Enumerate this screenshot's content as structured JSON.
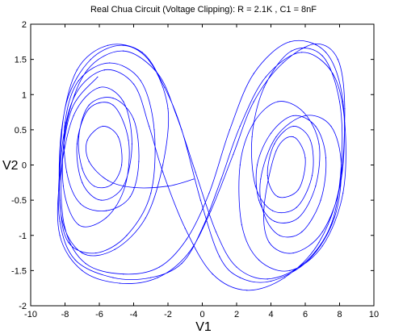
{
  "chart_data": {
    "type": "line",
    "title": "Real Chua Circuit (Voltage Clipping): R = 2.1K , C1 = 8nF",
    "xlabel": "V1",
    "ylabel": "V2",
    "xlim": [
      -10,
      10
    ],
    "ylim": [
      -2,
      2
    ],
    "xticks": [
      -10,
      -8,
      -6,
      -4,
      -2,
      0,
      2,
      4,
      6,
      8,
      10
    ],
    "yticks": [
      -2,
      -1.5,
      -1,
      -0.5,
      0,
      0.5,
      1,
      1.5,
      2
    ],
    "grid": false,
    "line_color": "#0000ff",
    "series": [
      {
        "values": [
          [
            -0.5,
            -0.2
          ],
          [
            -2.0,
            -0.3
          ],
          [
            -4.0,
            -0.32
          ],
          [
            -5.5,
            -0.22
          ],
          [
            -6.6,
            0.05
          ],
          [
            -6.7,
            0.35
          ],
          [
            -5.8,
            0.55
          ],
          [
            -4.9,
            0.4
          ],
          [
            -4.7,
            0.0
          ],
          [
            -5.3,
            -0.28
          ],
          [
            -6.3,
            -0.3
          ],
          [
            -7.0,
            -0.05
          ],
          [
            -7.2,
            0.4
          ],
          [
            -6.6,
            0.85
          ],
          [
            -5.2,
            0.95
          ],
          [
            -4.0,
            0.65
          ],
          [
            -3.7,
            0.05
          ],
          [
            -4.2,
            -0.45
          ],
          [
            -5.6,
            -0.65
          ],
          [
            -7.1,
            -0.55
          ],
          [
            -7.9,
            -0.1
          ],
          [
            -8.0,
            0.6
          ],
          [
            -7.2,
            1.2
          ],
          [
            -5.4,
            1.45
          ],
          [
            -3.6,
            1.2
          ],
          [
            -2.8,
            0.5
          ],
          [
            -3.0,
            -0.4
          ],
          [
            -4.4,
            -1.0
          ],
          [
            -6.2,
            -1.25
          ],
          [
            -7.8,
            -1.1
          ],
          [
            -8.3,
            -0.5
          ],
          [
            -8.2,
            0.5
          ],
          [
            -7.3,
            1.35
          ],
          [
            -5.5,
            1.7
          ],
          [
            -3.5,
            1.6
          ],
          [
            -2.2,
            1.1
          ],
          [
            -1.2,
            0.5
          ],
          [
            -0.1,
            -0.5
          ],
          [
            1.0,
            -1.3
          ],
          [
            2.2,
            -1.6
          ],
          [
            4.0,
            -1.65
          ],
          [
            6.2,
            -1.35
          ],
          [
            7.7,
            -0.75
          ],
          [
            8.1,
            0.0
          ],
          [
            7.5,
            0.55
          ],
          [
            6.0,
            0.7
          ],
          [
            4.3,
            0.4
          ],
          [
            3.4,
            -0.2
          ],
          [
            3.6,
            -0.7
          ],
          [
            4.5,
            -1.0
          ],
          [
            5.8,
            -0.95
          ],
          [
            6.9,
            -0.5
          ],
          [
            7.2,
            0.1
          ],
          [
            6.6,
            0.55
          ],
          [
            5.3,
            0.7
          ],
          [
            4.0,
            0.45
          ],
          [
            3.2,
            0.0
          ],
          [
            3.3,
            -0.5
          ],
          [
            4.2,
            -0.8
          ],
          [
            5.6,
            -0.75
          ],
          [
            6.6,
            -0.3
          ],
          [
            6.8,
            0.3
          ],
          [
            5.9,
            0.75
          ],
          [
            4.4,
            0.9
          ],
          [
            3.0,
            0.6
          ],
          [
            2.2,
            0.0
          ],
          [
            2.3,
            -0.85
          ],
          [
            3.3,
            -1.35
          ],
          [
            5.1,
            -1.5
          ],
          [
            7.0,
            -1.15
          ],
          [
            8.2,
            -0.4
          ],
          [
            8.3,
            0.6
          ],
          [
            7.6,
            1.3
          ],
          [
            5.8,
            1.6
          ],
          [
            3.7,
            1.25
          ],
          [
            2.2,
            0.55
          ],
          [
            1.1,
            -0.2
          ],
          [
            0.0,
            -0.9
          ],
          [
            -1.2,
            -1.4
          ],
          [
            -3.0,
            -1.6
          ],
          [
            -5.2,
            -1.6
          ],
          [
            -7.4,
            -1.35
          ],
          [
            -8.3,
            -0.8
          ],
          [
            -8.3,
            0.0
          ],
          [
            -7.9,
            0.9
          ],
          [
            -6.5,
            1.5
          ],
          [
            -4.6,
            1.7
          ],
          [
            -3.0,
            1.45
          ],
          [
            -2.0,
            0.8
          ],
          [
            -2.3,
            0.0
          ],
          [
            -3.3,
            -0.75
          ],
          [
            -5.1,
            -1.2
          ],
          [
            -7.0,
            -1.25
          ],
          [
            -8.2,
            -0.75
          ],
          [
            -8.2,
            0.2
          ],
          [
            -7.4,
            1.0
          ],
          [
            -5.7,
            1.35
          ],
          [
            -4.0,
            1.15
          ],
          [
            -3.1,
            0.55
          ],
          [
            -2.3,
            -0.1
          ],
          [
            -1.0,
            -0.9
          ],
          [
            0.6,
            -1.55
          ],
          [
            2.6,
            -1.78
          ],
          [
            4.8,
            -1.6
          ],
          [
            6.8,
            -1.1
          ],
          [
            8.0,
            -0.3
          ],
          [
            8.3,
            0.8
          ],
          [
            7.9,
            1.5
          ],
          [
            6.6,
            1.72
          ],
          [
            4.7,
            1.45
          ],
          [
            3.0,
            0.9
          ],
          [
            1.8,
            0.15
          ],
          [
            0.5,
            -0.65
          ],
          [
            -0.8,
            -1.25
          ],
          [
            -2.6,
            -1.6
          ],
          [
            -4.8,
            -1.68
          ],
          [
            -7.0,
            -1.5
          ],
          [
            -8.3,
            -1.0
          ],
          [
            -8.3,
            -0.2
          ],
          [
            -7.5,
            0.7
          ],
          [
            -6.0,
            1.1
          ],
          [
            -4.6,
            0.9
          ],
          [
            -4.1,
            0.3
          ],
          [
            -4.6,
            -0.3
          ],
          [
            -5.9,
            -0.5
          ],
          [
            -7.0,
            -0.25
          ],
          [
            -7.3,
            0.3
          ],
          [
            -6.6,
            0.8
          ],
          [
            -5.2,
            0.85
          ],
          [
            -4.3,
            0.35
          ],
          [
            -4.5,
            -0.3
          ],
          [
            -5.6,
            -0.75
          ],
          [
            -7.2,
            -0.85
          ],
          [
            -8.1,
            -0.3
          ],
          [
            -7.9,
            0.6
          ],
          [
            -6.7,
            1.35
          ],
          [
            -4.6,
            1.62
          ],
          [
            -2.6,
            1.3
          ],
          [
            -1.5,
            0.7
          ],
          [
            -0.4,
            -0.1
          ],
          [
            0.8,
            -0.95
          ],
          [
            2.0,
            -1.45
          ],
          [
            3.8,
            -1.62
          ],
          [
            5.9,
            -1.4
          ],
          [
            7.5,
            -0.85
          ],
          [
            8.1,
            0.0
          ],
          [
            8.0,
            0.9
          ],
          [
            7.0,
            1.55
          ],
          [
            5.2,
            1.62
          ],
          [
            3.6,
            1.1
          ],
          [
            2.9,
            0.4
          ],
          [
            3.1,
            -0.3
          ],
          [
            4.1,
            -0.65
          ],
          [
            5.5,
            -0.6
          ],
          [
            6.4,
            -0.15
          ],
          [
            6.3,
            0.35
          ],
          [
            5.3,
            0.55
          ],
          [
            4.2,
            0.3
          ],
          [
            3.8,
            -0.15
          ],
          [
            4.4,
            -0.45
          ],
          [
            5.6,
            -0.35
          ],
          [
            6.0,
            0.1
          ],
          [
            5.3,
            0.4
          ],
          [
            4.3,
            0.2
          ],
          [
            3.6,
            -0.6
          ],
          [
            3.9,
            -1.1
          ],
          [
            5.3,
            -1.25
          ],
          [
            7.0,
            -0.95
          ],
          [
            8.1,
            -0.2
          ],
          [
            8.2,
            0.9
          ],
          [
            7.2,
            1.6
          ],
          [
            5.1,
            1.75
          ],
          [
            3.0,
            1.3
          ],
          [
            1.6,
            0.5
          ],
          [
            0.4,
            -0.4
          ],
          [
            -0.9,
            -1.05
          ],
          [
            -2.5,
            -1.45
          ],
          [
            -4.6,
            -1.55
          ],
          [
            -6.8,
            -1.4
          ],
          [
            -8.0,
            -0.9
          ],
          [
            -8.2,
            -0.05
          ],
          [
            -7.6,
            0.8
          ],
          [
            -6.1,
            1.25
          ]
        ]
      }
    ]
  }
}
